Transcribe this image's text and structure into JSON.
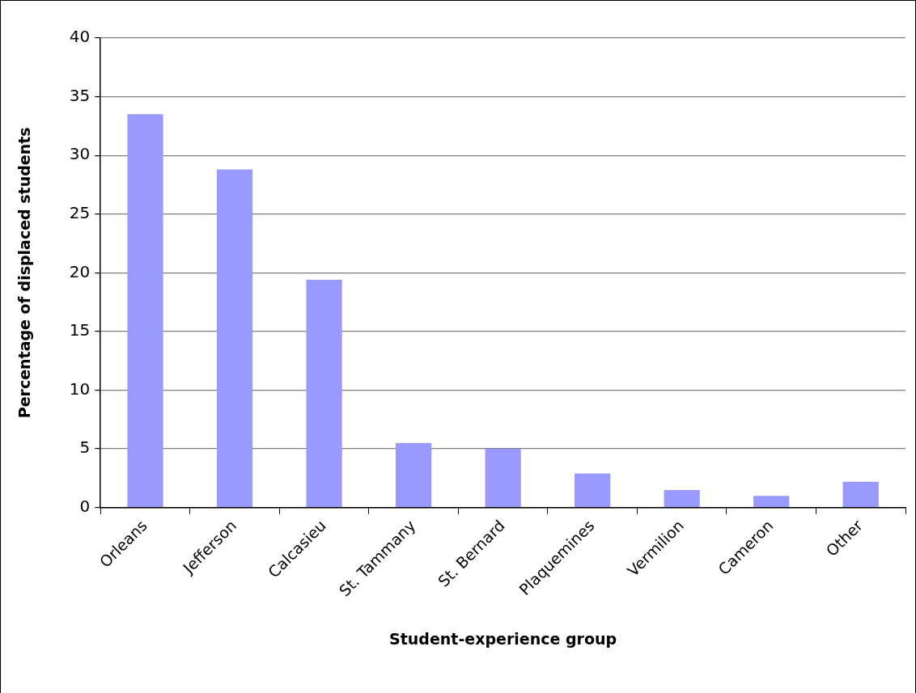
{
  "chart_data": {
    "type": "bar",
    "xlabel": "Student-experience group",
    "ylabel": "Percentage of displaced students",
    "categories": [
      "Orleans",
      "Jefferson",
      "Calcasieu",
      "St. Tammany",
      "St. Bernard",
      "Plaquemines",
      "Vermilion",
      "Cameron",
      "Other"
    ],
    "values": [
      33.5,
      28.8,
      19.4,
      5.5,
      5.0,
      2.9,
      1.5,
      1.0,
      2.2
    ],
    "color": "#9999ff",
    "ylim": [
      0,
      40
    ],
    "yticks": [
      0,
      5,
      10,
      15,
      20,
      25,
      30,
      35,
      40
    ],
    "grid": "y"
  }
}
